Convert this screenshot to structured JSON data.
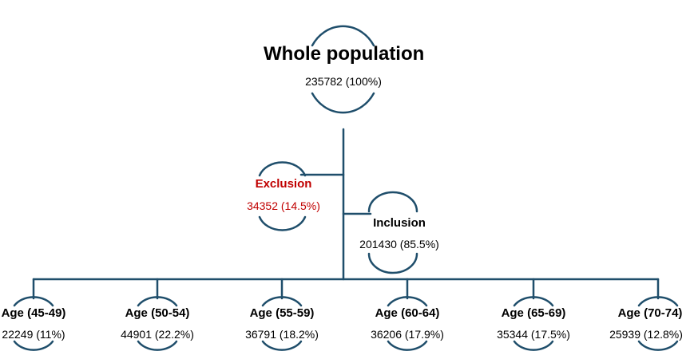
{
  "root": {
    "label": "Whole population",
    "value": "235782 (100%)"
  },
  "exclusion": {
    "label": "Exclusion",
    "value": "34352 (14.5%)",
    "color": "#c00000"
  },
  "inclusion": {
    "label": "Inclusion",
    "value": "201430 (85.5%)"
  },
  "groups": [
    {
      "label": "Age (45-49)",
      "value": "22249 (11%)"
    },
    {
      "label": "Age (50-54)",
      "value": "44901 (22.2%)"
    },
    {
      "label": "Age (55-59)",
      "value": "36791 (18.2%)"
    },
    {
      "label": "Age (60-64)",
      "value": "36206 (17.9%)"
    },
    {
      "label": "Age (65-69)",
      "value": "35344 (17.5%)"
    },
    {
      "label": "Age (70-74)",
      "value": "25939 (12.8%)"
    }
  ],
  "line_color": "#1f4e6b"
}
